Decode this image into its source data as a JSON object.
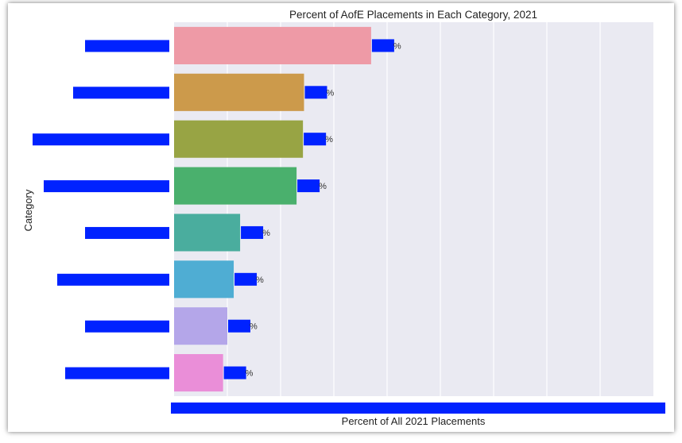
{
  "chart_data": {
    "type": "bar",
    "orientation": "horizontal",
    "title": "Percent of AofE Placements in Each Category, 2021",
    "xlabel": "Percent of All 2021 Placements",
    "ylabel": "Category",
    "categories": [
      "",
      "",
      "",
      "",
      "",
      "",
      "",
      ""
    ],
    "values": [
      18.5,
      12.2,
      12.1,
      11.5,
      6.2,
      5.6,
      5.0,
      4.6
    ],
    "value_labels": [
      "%",
      "%",
      "%",
      "%",
      "%",
      "%",
      "%",
      "%"
    ],
    "xlim": [
      0,
      45
    ],
    "grid": true,
    "legend": "none",
    "colors": [
      "#ee9aa6",
      "#cc9a4b",
      "#98a444",
      "#4ab06d",
      "#4aad9e",
      "#4fadd3",
      "#b4a6e9",
      "#ea8ed8"
    ],
    "redaction_color": "#0022ff",
    "plot_background": "#eaeaf2"
  }
}
